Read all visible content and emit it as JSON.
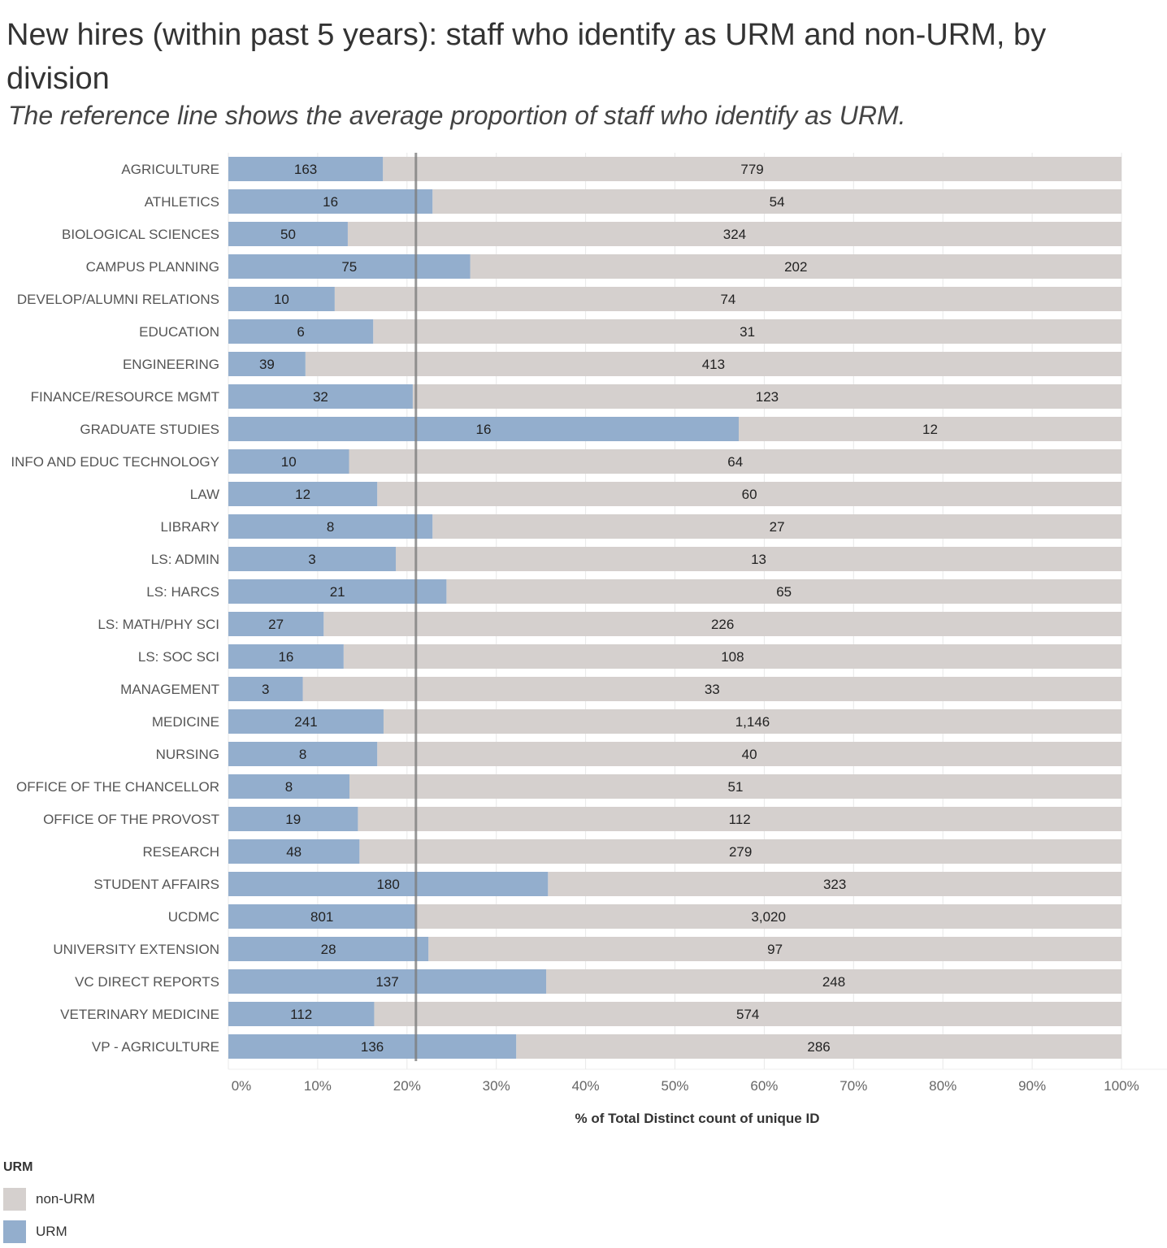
{
  "title": "New hires (within past 5 years): staff who identify as URM and non-URM, by division",
  "subtitle": "The reference line shows the average proportion of staff who identify as URM.",
  "colors": {
    "urm": "#93aecd",
    "non_urm": "#d5d0ce",
    "reference_line": "#7d7d7d",
    "grid": "#e8e8e8"
  },
  "legend": {
    "title": "URM",
    "items": [
      {
        "label": "non-URM",
        "color": "#d5d0ce"
      },
      {
        "label": "URM",
        "color": "#93aecd"
      }
    ]
  },
  "chart_data": {
    "type": "bar",
    "orientation": "horizontal",
    "stacked": "100%",
    "xlabel": "% of Total Distinct count of unique ID",
    "xlim": [
      0,
      100
    ],
    "x_ticks": [
      "0%",
      "10%",
      "20%",
      "30%",
      "40%",
      "50%",
      "60%",
      "70%",
      "80%",
      "90%",
      "100%"
    ],
    "reference_line_pct": 21,
    "categories": [
      "AGRICULTURE",
      "ATHLETICS",
      "BIOLOGICAL SCIENCES",
      "CAMPUS PLANNING",
      "DEVELOP/ALUMNI RELATIONS",
      "EDUCATION",
      "ENGINEERING",
      "FINANCE/RESOURCE MGMT",
      "GRADUATE STUDIES",
      "INFO AND EDUC TECHNOLOGY",
      "LAW",
      "LIBRARY",
      "LS: ADMIN",
      "LS: HARCS",
      "LS: MATH/PHY SCI",
      "LS: SOC SCI",
      "MANAGEMENT",
      "MEDICINE",
      "NURSING",
      "OFFICE OF THE CHANCELLOR",
      "OFFICE OF THE PROVOST",
      "RESEARCH",
      "STUDENT AFFAIRS",
      "UCDMC",
      "UNIVERSITY EXTENSION",
      "VC DIRECT REPORTS",
      "VETERINARY MEDICINE",
      "VP - AGRICULTURE"
    ],
    "series": [
      {
        "name": "URM",
        "values": [
          163,
          16,
          50,
          75,
          10,
          6,
          39,
          32,
          16,
          10,
          12,
          8,
          3,
          21,
          27,
          16,
          3,
          241,
          8,
          8,
          19,
          48,
          180,
          801,
          28,
          137,
          112,
          136
        ],
        "labels": [
          "163",
          "16",
          "50",
          "75",
          "10",
          "6",
          "39",
          "32",
          "16",
          "10",
          "12",
          "8",
          "3",
          "21",
          "27",
          "16",
          "3",
          "241",
          "8",
          "8",
          "19",
          "48",
          "180",
          "801",
          "28",
          "137",
          "112",
          "136"
        ]
      },
      {
        "name": "non-URM",
        "values": [
          779,
          54,
          324,
          202,
          74,
          31,
          413,
          123,
          12,
          64,
          60,
          27,
          13,
          65,
          226,
          108,
          33,
          1146,
          40,
          51,
          112,
          279,
          323,
          3020,
          97,
          248,
          574,
          286
        ],
        "labels": [
          "779",
          "54",
          "324",
          "202",
          "74",
          "31",
          "413",
          "123",
          "12",
          "64",
          "60",
          "27",
          "13",
          "65",
          "226",
          "108",
          "33",
          "1,146",
          "40",
          "51",
          "112",
          "279",
          "323",
          "3,020",
          "97",
          "248",
          "574",
          "286"
        ]
      }
    ]
  }
}
